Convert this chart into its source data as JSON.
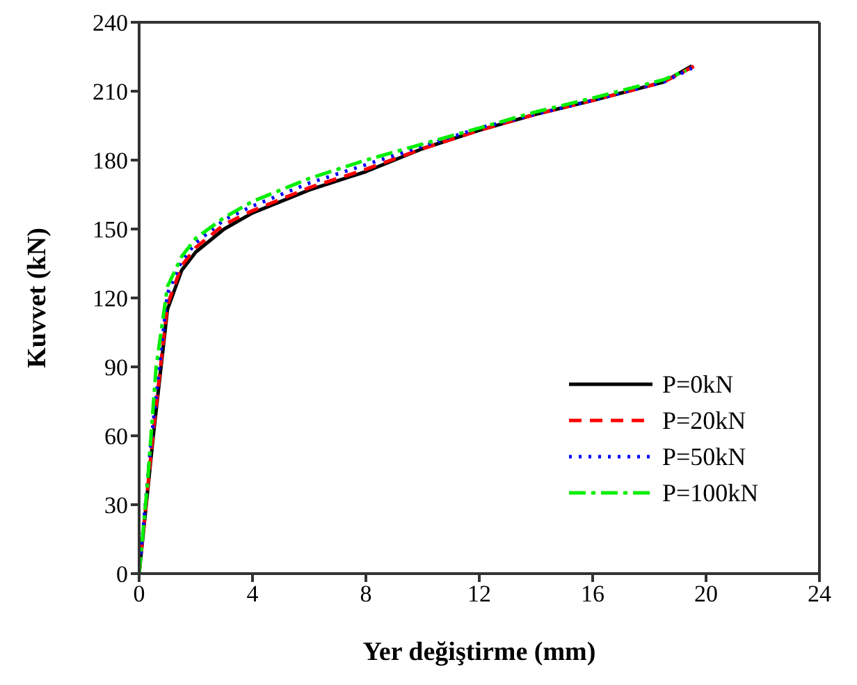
{
  "chart_data": {
    "type": "line",
    "xlabel": "Yer değiştirme (mm)",
    "ylabel": "Kuvvet (kN)",
    "xlim": [
      0,
      24
    ],
    "xticks": [
      0,
      4,
      8,
      12,
      16,
      20,
      24
    ],
    "ylim": [
      0,
      240
    ],
    "yticks": [
      0,
      30,
      60,
      90,
      120,
      150,
      180,
      210,
      240
    ],
    "grid": false,
    "legend": "bottom right",
    "marker": "none",
    "series": [
      {
        "name": "P=0kN",
        "color": "#000000",
        "line_style": "solid",
        "x": [
          0,
          0.5,
          1,
          1.5,
          2,
          3,
          4,
          6,
          8,
          10,
          12,
          14,
          16,
          18.5,
          19.5
        ],
        "values": [
          0,
          60,
          115,
          132,
          140,
          150,
          157,
          167,
          175,
          185,
          193,
          200,
          206,
          214,
          221
        ]
      },
      {
        "name": "P=20kN",
        "color": "#ff0000",
        "line_style": "dashed",
        "x": [
          0,
          0.5,
          1,
          1.5,
          2,
          3,
          4,
          6,
          8,
          10,
          12,
          14,
          16,
          18.5,
          19.6
        ],
        "values": [
          0,
          62,
          117,
          134,
          142,
          152,
          158,
          168,
          176,
          185,
          193,
          200,
          206,
          214,
          221
        ]
      },
      {
        "name": "P=50kN",
        "color": "#0000ff",
        "line_style": "dotted",
        "x": [
          0,
          0.4,
          1,
          1.5,
          2,
          3,
          4,
          6,
          8,
          10,
          12,
          14,
          16,
          18.5,
          19.5
        ],
        "values": [
          0,
          55,
          122,
          136,
          144,
          154,
          160,
          170,
          178,
          186,
          194,
          200,
          206,
          214,
          220
        ]
      },
      {
        "name": "P=100kN",
        "color": "#00ee00",
        "line_style": "dashdot",
        "x": [
          0,
          0.3,
          0.6,
          1,
          1.5,
          2,
          3,
          4,
          6,
          8,
          10,
          12,
          14,
          16,
          18.5,
          19.3
        ],
        "values": [
          0,
          40,
          90,
          125,
          138,
          146,
          155,
          162,
          172,
          180,
          187,
          194,
          201,
          207,
          215,
          219
        ]
      }
    ]
  }
}
